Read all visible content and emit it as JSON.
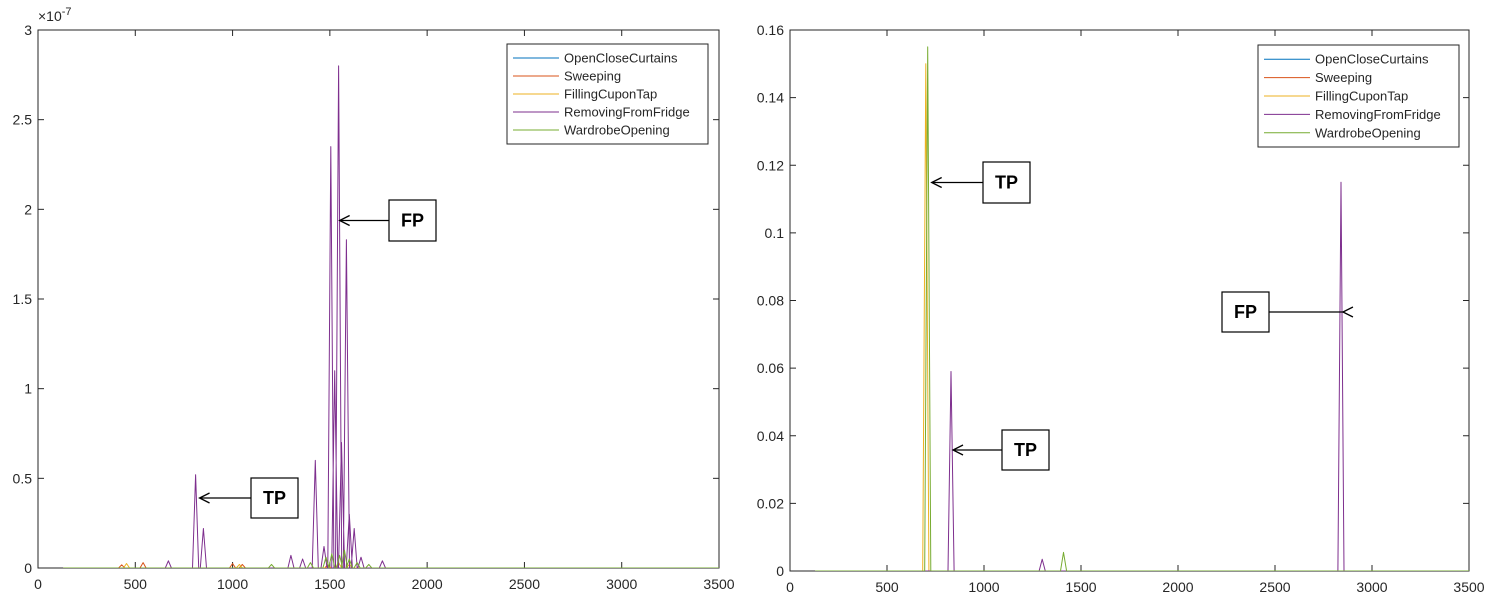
{
  "chart_data": [
    {
      "type": "line",
      "title": "",
      "xlabel": "",
      "ylabel": "",
      "xlim": [
        0,
        3500
      ],
      "ylim": [
        0,
        3e-07
      ],
      "y_exponent_label": "×10",
      "y_exponent": "-7",
      "xticks": [
        "0",
        "500",
        "1000",
        "1500",
        "2000",
        "2500",
        "3000",
        "3500"
      ],
      "xtick_values": [
        0,
        500,
        1000,
        1500,
        2000,
        2500,
        3000,
        3500
      ],
      "yticks": [
        "0",
        "0.5",
        "1",
        "1.5",
        "2",
        "2.5",
        "3"
      ],
      "ytick_values": [
        0,
        5e-08,
        1e-07,
        1.5e-07,
        2e-07,
        2.5e-07,
        3e-07
      ],
      "grid": false,
      "legend_position": "top-right",
      "series": [
        {
          "name": "OpenCloseCurtains",
          "color": "#0072BD",
          "x_start": 130,
          "peaks": []
        },
        {
          "name": "Sweeping",
          "color": "#D95319",
          "x_start": 130,
          "peaks": [
            [
              430,
              1.8e-09
            ],
            [
              540,
              3e-09
            ],
            [
              1000,
              2.5e-09
            ],
            [
              1050,
              2e-09
            ],
            [
              1490,
              2e-09
            ]
          ]
        },
        {
          "name": "FillingCuponTap",
          "color": "#EDB120",
          "x_start": 130,
          "peaks": [
            [
              455,
              2.5e-09
            ],
            [
              1035,
              2e-09
            ],
            [
              1545,
              3e-09
            ],
            [
              1600,
              2e-09
            ]
          ]
        },
        {
          "name": "RemovingFromFridge",
          "color": "#7E2F8E",
          "x_start": 130,
          "peaks": [
            [
              670,
              4e-09
            ],
            [
              810,
              5.2e-08
            ],
            [
              850,
              2.2e-08
            ],
            [
              1300,
              7e-09
            ],
            [
              1360,
              5e-09
            ],
            [
              1425,
              6e-08
            ],
            [
              1470,
              1.2e-08
            ],
            [
              1505,
              2.35e-07
            ],
            [
              1525,
              1.1e-07
            ],
            [
              1545,
              2.8e-07
            ],
            [
              1560,
              7e-08
            ],
            [
              1585,
              1.83e-07
            ],
            [
              1600,
              3e-08
            ],
            [
              1625,
              2.2e-08
            ],
            [
              1660,
              6e-09
            ],
            [
              1770,
              4e-09
            ]
          ]
        },
        {
          "name": "WardrobeOpening",
          "color": "#77AC30",
          "x_start": 130,
          "peaks": [
            [
              1200,
              2e-09
            ],
            [
              1400,
              3e-09
            ],
            [
              1480,
              6e-09
            ],
            [
              1510,
              8e-09
            ],
            [
              1550,
              7e-09
            ],
            [
              1575,
              1e-08
            ],
            [
              1600,
              5e-09
            ],
            [
              1640,
              3e-09
            ],
            [
              1700,
              2e-09
            ]
          ]
        }
      ],
      "annotations": [
        {
          "label": "TP",
          "target": [
            820,
            4.1e-08
          ]
        },
        {
          "label": "FP",
          "target": [
            1540,
            1.95e-07
          ]
        }
      ]
    },
    {
      "type": "line",
      "title": "",
      "xlabel": "",
      "ylabel": "",
      "xlim": [
        0,
        3500
      ],
      "ylim": [
        0,
        0.16
      ],
      "xticks": [
        "0",
        "500",
        "1000",
        "1500",
        "2000",
        "2500",
        "3000",
        "3500"
      ],
      "xtick_values": [
        0,
        500,
        1000,
        1500,
        2000,
        2500,
        3000,
        3500
      ],
      "yticks": [
        "0",
        "0.02",
        "0.04",
        "0.06",
        "0.08",
        "0.1",
        "0.12",
        "0.14",
        "0.16"
      ],
      "ytick_values": [
        0,
        0.02,
        0.04,
        0.06,
        0.08,
        0.1,
        0.12,
        0.14,
        0.16
      ],
      "grid": false,
      "legend_position": "top-right",
      "series": [
        {
          "name": "OpenCloseCurtains",
          "color": "#0072BD",
          "x_start": 130,
          "peaks": []
        },
        {
          "name": "Sweeping",
          "color": "#D95319",
          "x_start": 130,
          "peaks": []
        },
        {
          "name": "FillingCuponTap",
          "color": "#EDB120",
          "x_start": 130,
          "peaks": [
            [
              700,
              0.15
            ]
          ]
        },
        {
          "name": "RemovingFromFridge",
          "color": "#7E2F8E",
          "x_start": 130,
          "peaks": [
            [
              830,
              0.059
            ],
            [
              1300,
              0.0035
            ],
            [
              2840,
              0.115
            ]
          ]
        },
        {
          "name": "WardrobeOpening",
          "color": "#77AC30",
          "x_start": 130,
          "peaks": [
            [
              710,
              0.155
            ],
            [
              1410,
              0.0055
            ]
          ]
        }
      ],
      "annotations": [
        {
          "label": "TP",
          "target": [
            720,
            0.115
          ]
        },
        {
          "label": "TP",
          "target": [
            830,
            0.037
          ]
        },
        {
          "label": "FP",
          "target": [
            2840,
            0.077
          ]
        }
      ]
    }
  ]
}
